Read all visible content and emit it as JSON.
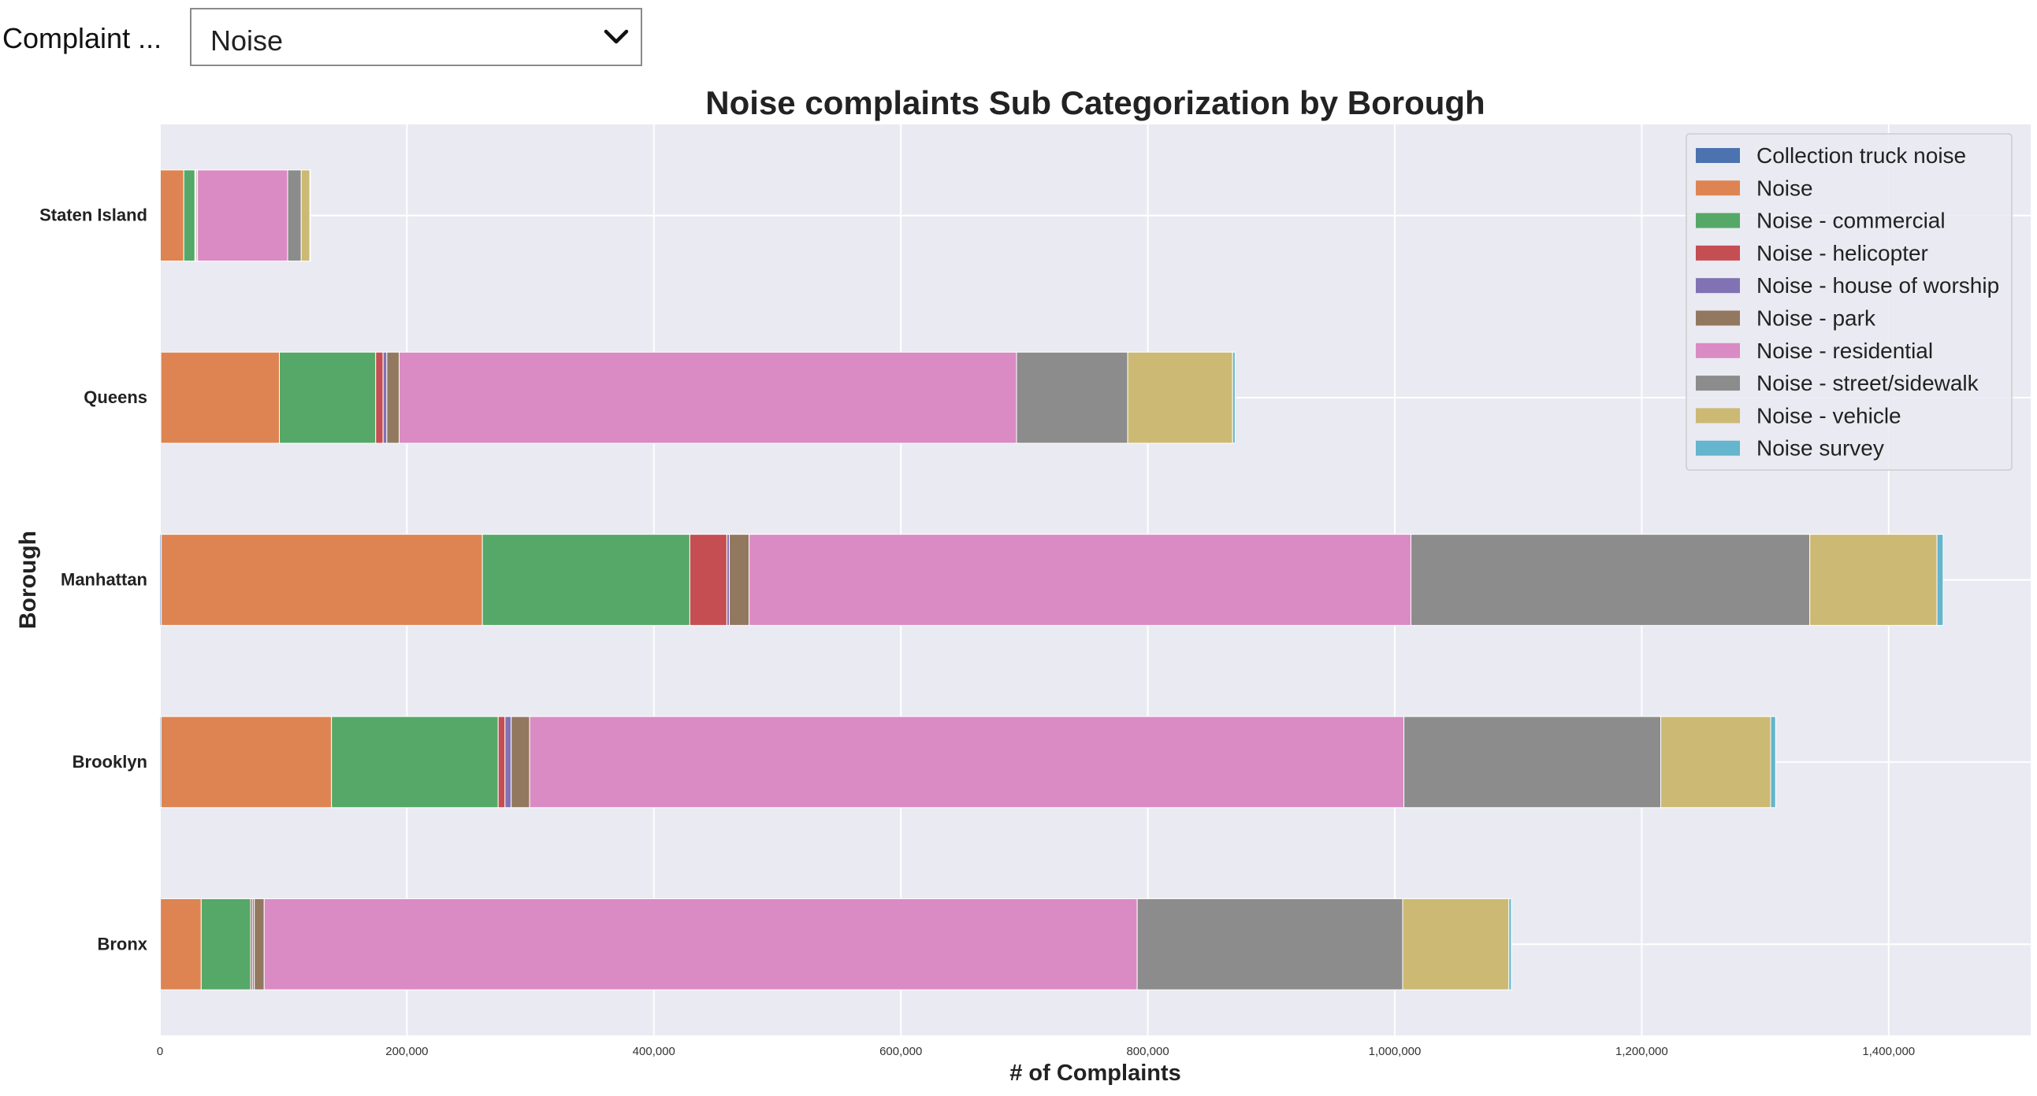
{
  "filter": {
    "label": "Complaint ...",
    "selected": "Noise"
  },
  "chart_data": {
    "type": "bar",
    "orientation": "horizontal",
    "stacked": true,
    "title": "Noise complaints Sub Categorization by Borough",
    "xlabel": "# of Complaints",
    "ylabel": "Borough",
    "xlim": [
      0,
      1515000
    ],
    "xticks": [
      0,
      200000,
      400000,
      600000,
      800000,
      1000000,
      1200000,
      1400000
    ],
    "xtick_labels": [
      "0",
      "200,000",
      "400,000",
      "600,000",
      "800,000",
      "1,000,000",
      "1,200,000",
      "1,400,000"
    ],
    "grid": true,
    "legend_position": "top-right",
    "categories": [
      "Bronx",
      "Brooklyn",
      "Manhattan",
      "Queens",
      "Staten Island"
    ],
    "series": [
      {
        "name": "Collection truck noise",
        "color": "#4c72b0",
        "values": [
          400,
          900,
          1100,
          700,
          300
        ]
      },
      {
        "name": "Noise",
        "color": "#dd8452",
        "values": [
          33000,
          138000,
          260000,
          96000,
          19000
        ]
      },
      {
        "name": "Noise - commercial",
        "color": "#55a868",
        "values": [
          40000,
          135000,
          168000,
          78000,
          9000
        ]
      },
      {
        "name": "Noise - helicopter",
        "color": "#c44e52",
        "values": [
          1500,
          5500,
          30000,
          6000,
          600
        ]
      },
      {
        "name": "Noise - house of worship",
        "color": "#8172b3",
        "values": [
          1500,
          5000,
          2000,
          3000,
          500
        ]
      },
      {
        "name": "Noise - park",
        "color": "#937860",
        "values": [
          8000,
          15000,
          16000,
          10000,
          1000
        ]
      },
      {
        "name": "Noise - residential",
        "color": "#da8bc3",
        "values": [
          707000,
          708000,
          536000,
          500000,
          73000
        ]
      },
      {
        "name": "Noise - street/sidewalk",
        "color": "#8c8c8c",
        "values": [
          215000,
          208000,
          323000,
          90000,
          11000
        ]
      },
      {
        "name": "Noise - vehicle",
        "color": "#ccb974",
        "values": [
          86000,
          89000,
          103000,
          85000,
          7000
        ]
      },
      {
        "name": "Noise survey",
        "color": "#64b5cd",
        "values": [
          2000,
          4000,
          5000,
          2000,
          500
        ]
      }
    ]
  }
}
